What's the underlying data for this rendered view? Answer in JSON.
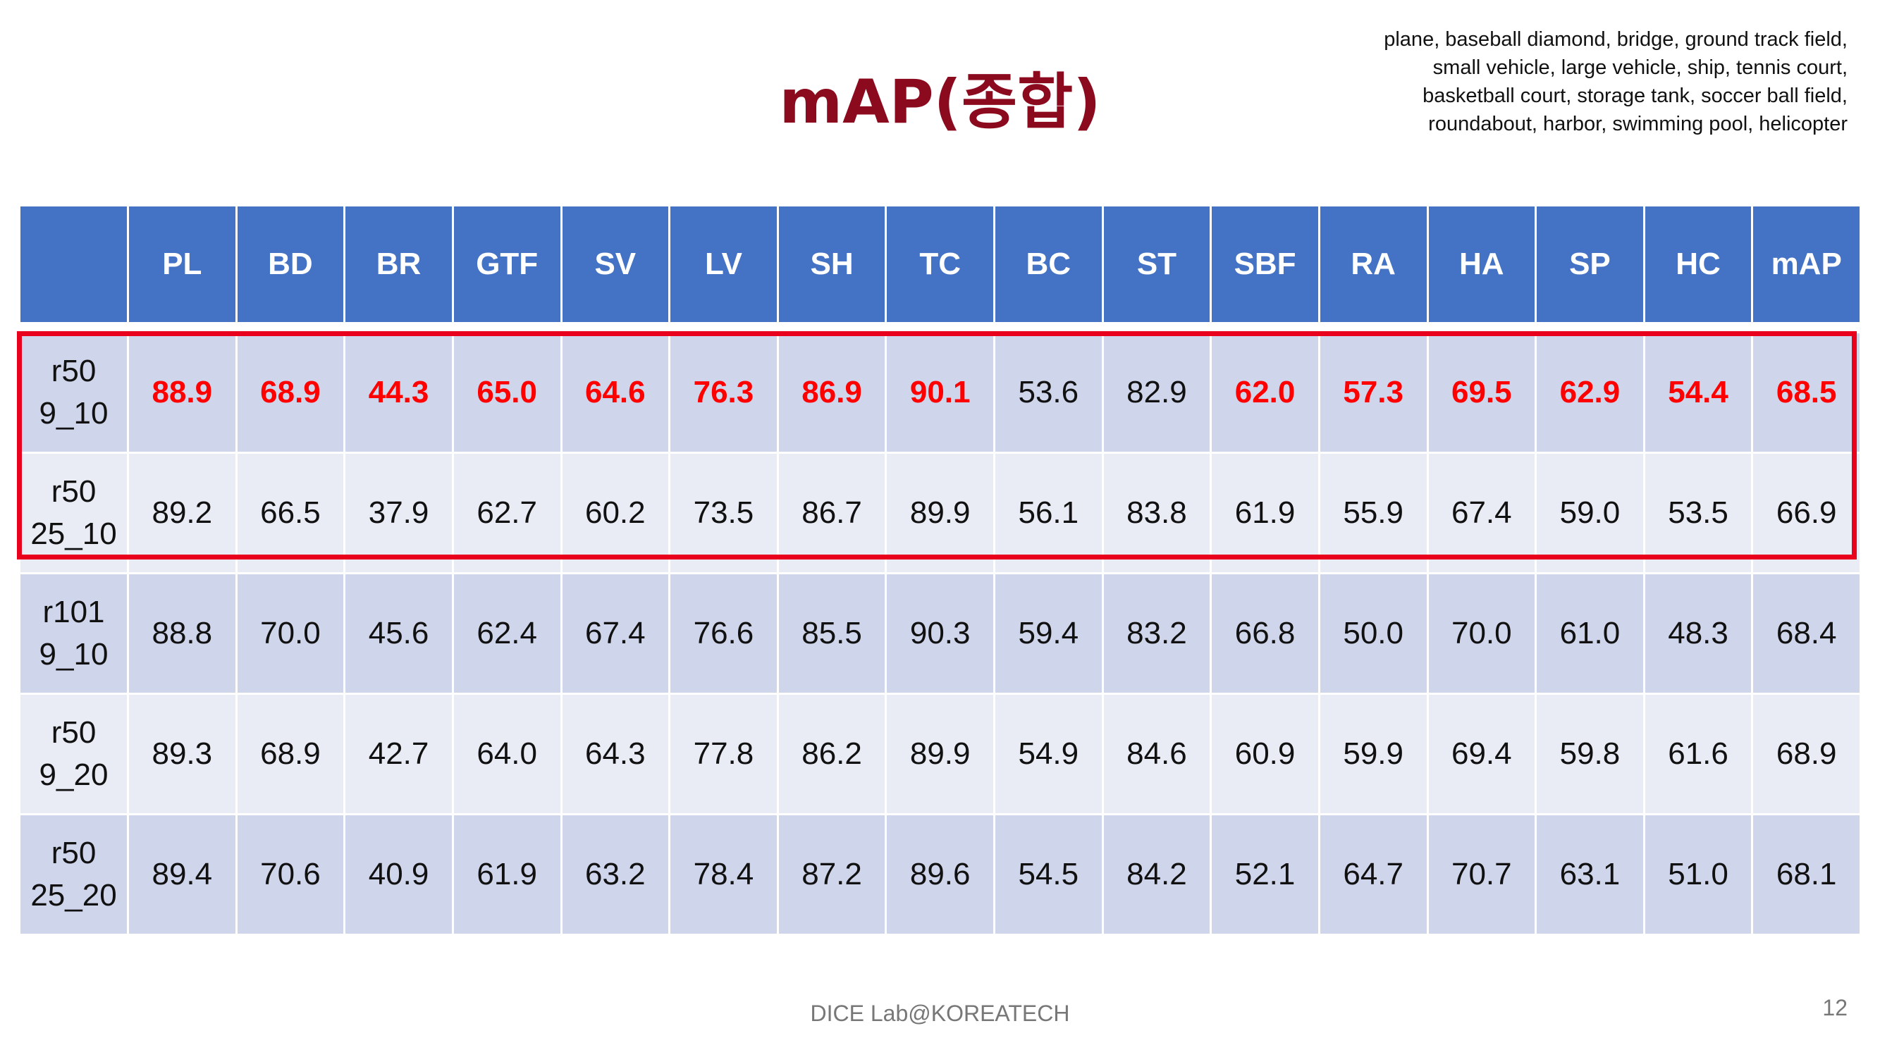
{
  "title": "mAP(종합)",
  "class_note": "plane, baseball diamond, bridge, ground track field, small vehicle, large vehicle, ship, tennis court, basketball court, storage tank, soccer ball field, roundabout, harbor, swimming pool, helicopter",
  "table": {
    "headers": [
      "",
      "PL",
      "BD",
      "BR",
      "GTF",
      "SV",
      "LV",
      "SH",
      "TC",
      "BC",
      "ST",
      "SBF",
      "RA",
      "HA",
      "SP",
      "HC",
      "mAP"
    ],
    "rows": [
      {
        "label1": "r50",
        "label2": "9_10",
        "values": [
          "88.9",
          "68.9",
          "44.3",
          "65.0",
          "64.6",
          "76.3",
          "86.9",
          "90.1",
          "53.6",
          "82.9",
          "62.0",
          "57.3",
          "69.5",
          "62.9",
          "54.4",
          "68.5"
        ]
      },
      {
        "label1": "r50",
        "label2": "25_10",
        "values": [
          "89.2",
          "66.5",
          "37.9",
          "62.7",
          "60.2",
          "73.5",
          "86.7",
          "89.9",
          "56.1",
          "83.8",
          "61.9",
          "55.9",
          "67.4",
          "59.0",
          "53.5",
          "66.9"
        ]
      },
      {
        "label1": "r101",
        "label2": "9_10",
        "values": [
          "88.8",
          "70.0",
          "45.6",
          "62.4",
          "67.4",
          "76.6",
          "85.5",
          "90.3",
          "59.4",
          "83.2",
          "66.8",
          "50.0",
          "70.0",
          "61.0",
          "48.3",
          "68.4"
        ]
      },
      {
        "label1": "r50",
        "label2": "9_20",
        "values": [
          "89.3",
          "68.9",
          "42.7",
          "64.0",
          "64.3",
          "77.8",
          "86.2",
          "89.9",
          "54.9",
          "84.6",
          "60.9",
          "59.9",
          "69.4",
          "59.8",
          "61.6",
          "68.9"
        ]
      },
      {
        "label1": "r50",
        "label2": "25_20",
        "values": [
          "89.4",
          "70.6",
          "40.9",
          "61.9",
          "63.2",
          "78.4",
          "87.2",
          "89.6",
          "54.5",
          "84.2",
          "52.1",
          "64.7",
          "70.7",
          "63.1",
          "51.0",
          "68.1"
        ]
      }
    ]
  },
  "footer": "DICE  Lab@KOREATECH",
  "page_number": "12",
  "colors": {
    "title": "#8b0a1e",
    "header_bg": "#4472c4",
    "row_dark": "#cfd5ea",
    "row_light": "#e9ebf5",
    "highlight": "#ff0000"
  }
}
